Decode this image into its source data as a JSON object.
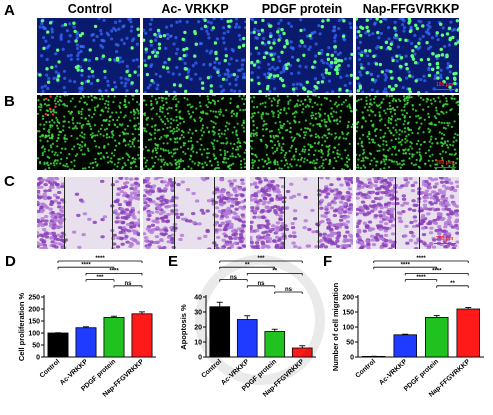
{
  "columns": [
    "Control",
    "Ac- VRKKP",
    "PDGF protein",
    "Nap-FFGVRKKP"
  ],
  "rows": [
    {
      "letter": "A"
    },
    {
      "letter": "B"
    },
    {
      "letter": "C"
    }
  ],
  "scale_bars": {
    "a": "100 μm",
    "b": "200 μm",
    "c": "200 μm"
  },
  "colors": {
    "control": "#000000",
    "ac_vrkkp": "#1f3bff",
    "pdgf": "#1fc21f",
    "nap": "#ff1a1a"
  },
  "chart_data": [
    {
      "panel": "D",
      "type": "bar",
      "categories": [
        "Control",
        "Ac-VRKKP",
        "PDGF protein",
        "Nap-FFGVRKKP"
      ],
      "values": [
        100,
        122,
        165,
        180
      ],
      "errors": [
        1,
        4,
        5,
        8
      ],
      "ylabel": "Cell proliferation %",
      "ylim": [
        0,
        250
      ],
      "yticks": [
        0,
        50,
        100,
        150,
        200,
        250
      ],
      "significance": [
        {
          "from": 0,
          "to": 3,
          "label": "****"
        },
        {
          "from": 0,
          "to": 2,
          "label": "****"
        },
        {
          "from": 1,
          "to": 3,
          "label": "****"
        },
        {
          "from": 1,
          "to": 2,
          "label": "***"
        },
        {
          "from": 2,
          "to": 3,
          "label": "ns"
        }
      ]
    },
    {
      "panel": "E",
      "type": "bar",
      "categories": [
        "Control",
        "Ac-VRKKP",
        "PDGF protein",
        "Nap-FFGVRKKP"
      ],
      "values": [
        33.5,
        25,
        17,
        6
      ],
      "errors": [
        3,
        2.5,
        1.5,
        1.5
      ],
      "ylabel": "Apoptosis %",
      "ylim": [
        0,
        40
      ],
      "yticks": [
        0,
        10,
        20,
        30,
        40
      ],
      "significance": [
        {
          "from": 0,
          "to": 3,
          "label": "***"
        },
        {
          "from": 0,
          "to": 2,
          "label": "**"
        },
        {
          "from": 1,
          "to": 3,
          "label": "**"
        },
        {
          "from": 0,
          "to": 1,
          "label": "ns"
        },
        {
          "from": 1,
          "to": 2,
          "label": "ns"
        },
        {
          "from": 2,
          "to": 3,
          "label": "ns"
        }
      ]
    },
    {
      "panel": "F",
      "type": "bar",
      "categories": [
        "Control",
        "Ac-VRKKP",
        "PDGF protein",
        "Nap-FFGVRKKP"
      ],
      "values": [
        2,
        74,
        132,
        160
      ],
      "errors": [
        0.5,
        2,
        6,
        5
      ],
      "ylabel": "Number of cell migration",
      "ylim": [
        0,
        200
      ],
      "yticks": [
        0,
        50,
        100,
        150,
        200
      ],
      "significance": [
        {
          "from": 0,
          "to": 3,
          "label": "****"
        },
        {
          "from": 0,
          "to": 2,
          "label": "****"
        },
        {
          "from": 1,
          "to": 3,
          "label": "****"
        },
        {
          "from": 1,
          "to": 2,
          "label": "****"
        },
        {
          "from": 2,
          "to": 3,
          "label": "**"
        }
      ]
    }
  ]
}
